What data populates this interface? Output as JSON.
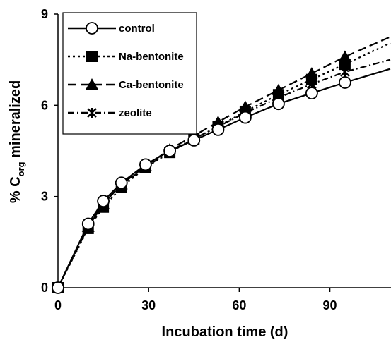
{
  "chart_data": {
    "type": "line",
    "title": "",
    "xlabel": "Incubation time (d)",
    "ylabel_parts": [
      "% C",
      "org",
      " mineralized"
    ],
    "xlim": [
      0,
      110
    ],
    "ylim": [
      0,
      9
    ],
    "xticks": [
      0,
      30,
      60,
      90
    ],
    "yticks": [
      0,
      3,
      6,
      9
    ],
    "grid": false,
    "legend_position": "top-left",
    "series": [
      {
        "name": "control",
        "marker": "circle-open",
        "dash": "solid",
        "x": [
          0,
          10,
          15,
          21,
          29,
          37,
          45,
          53,
          62,
          73,
          84,
          95,
          110
        ],
        "y": [
          0,
          2.1,
          2.85,
          3.45,
          4.05,
          4.5,
          4.85,
          5.2,
          5.6,
          6.05,
          6.4,
          6.75,
          7.2
        ]
      },
      {
        "name": "Na-bentonite",
        "marker": "square-filled",
        "dash": "dotted",
        "x": [
          0,
          10,
          15,
          21,
          29,
          37,
          45,
          53,
          62,
          73,
          84,
          95,
          110
        ],
        "y": [
          0,
          1.95,
          2.65,
          3.3,
          3.95,
          4.45,
          4.9,
          5.3,
          5.8,
          6.35,
          6.85,
          7.35,
          8.05
        ]
      },
      {
        "name": "Ca-bentonite",
        "marker": "triangle-filled",
        "dash": "long-dash",
        "x": [
          0,
          10,
          15,
          21,
          29,
          37,
          45,
          53,
          62,
          73,
          84,
          95,
          110
        ],
        "y": [
          0,
          2.0,
          2.75,
          3.4,
          4.0,
          4.55,
          5.0,
          5.45,
          5.95,
          6.5,
          7.05,
          7.6,
          8.25
        ]
      },
      {
        "name": "zeolite",
        "marker": "star",
        "dash": "dash-dot",
        "x": [
          0,
          10,
          15,
          21,
          29,
          37,
          45,
          53,
          62,
          73,
          84,
          95,
          110
        ],
        "y": [
          0,
          2.05,
          2.75,
          3.4,
          3.95,
          4.5,
          4.9,
          5.3,
          5.75,
          6.25,
          6.7,
          7.1,
          7.5
        ]
      }
    ]
  }
}
